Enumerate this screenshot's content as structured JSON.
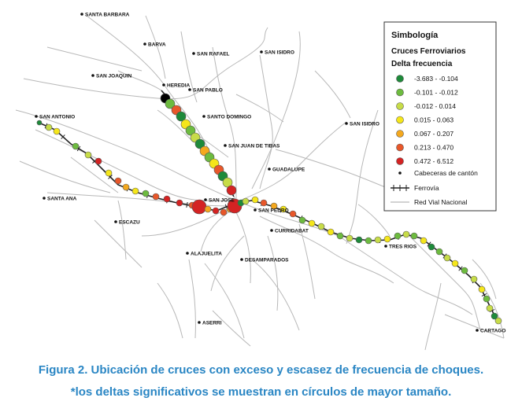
{
  "places": [
    {
      "name": "SANTA BARBARA"
    },
    {
      "name": "BARVA"
    },
    {
      "name": "SAN RAFAEL"
    },
    {
      "name": "SAN ISIDRO"
    },
    {
      "name": "SAN JOAQUIN"
    },
    {
      "name": "HEREDIA"
    },
    {
      "name": "SAN PABLO"
    },
    {
      "name": "SANTO DOMINGO"
    },
    {
      "name": "SAN ANTONIO"
    },
    {
      "name": "SAN ISIDRO"
    },
    {
      "name": "SAN JUAN DE TIBAS"
    },
    {
      "name": "GUADALUPE"
    },
    {
      "name": "SANTA ANA"
    },
    {
      "name": "SAN JOSE"
    },
    {
      "name": "SAN PEDRO"
    },
    {
      "name": "ESCAZU"
    },
    {
      "name": "CURRIDABAT"
    },
    {
      "name": "TRES RIOS"
    },
    {
      "name": "ALAJUELITA"
    },
    {
      "name": "DESAMPARADOS"
    },
    {
      "name": "ASERRI"
    },
    {
      "name": "CARTAGO"
    }
  ],
  "legend": {
    "title": "Simbología",
    "subtitle": "Cruces Ferroviarios",
    "field": "Delta frecuencia",
    "classes": [
      {
        "label": "-3.683 - -0.104",
        "color": "#1e8a3a"
      },
      {
        "label": "-0.101 - -0.012",
        "color": "#6dbb3f"
      },
      {
        "label": "-0.012 - 0.014",
        "color": "#c7dc48"
      },
      {
        "label": "0.015 - 0.063",
        "color": "#f5e61a"
      },
      {
        "label": "0.067 - 0.207",
        "color": "#f4a81e"
      },
      {
        "label": "0.213 - 0.470",
        "color": "#e8572a"
      },
      {
        "label": "0.472 - 6.512",
        "color": "#d42323"
      }
    ],
    "cabeceras_label": "Cabeceras de cantón",
    "ferrovia_label": "Ferrovía",
    "red_vial_label": "Red Vial Nacional"
  },
  "caption": {
    "line1": "Figura 2. Ubicación de cruces con exceso y escasez de frecuencia de choques.",
    "line2": "*los deltas significativos se muestran en círculos de mayor tamaño."
  },
  "colors": {
    "caption": "#2a86c4",
    "road": "#b8b8b8",
    "railway": "#222222",
    "marker_outline": "#555555"
  }
}
